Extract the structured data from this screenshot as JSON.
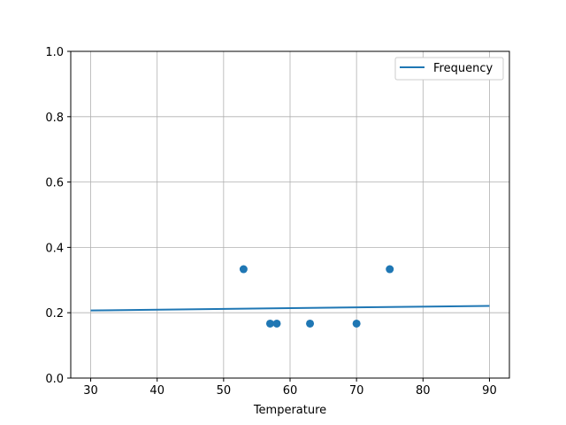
{
  "chart_data": {
    "type": "scatter",
    "title": "",
    "xlabel": "Temperature",
    "ylabel": "",
    "xlim": [
      27,
      93
    ],
    "ylim": [
      0,
      1
    ],
    "xticks": [
      30,
      40,
      50,
      60,
      70,
      80,
      90
    ],
    "yticks": [
      0.0,
      0.2,
      0.4,
      0.6,
      0.8,
      1.0
    ],
    "xtick_labels": [
      "30",
      "40",
      "50",
      "60",
      "70",
      "80",
      "90"
    ],
    "ytick_labels": [
      "0.0",
      "0.2",
      "0.4",
      "0.6",
      "0.8",
      "1.0"
    ],
    "grid": true,
    "legend_placement": "top-right",
    "color": "#1f77b4",
    "points": [
      {
        "x": 53,
        "y": 0.3333
      },
      {
        "x": 57,
        "y": 0.1667
      },
      {
        "x": 58,
        "y": 0.1667
      },
      {
        "x": 63,
        "y": 0.1667
      },
      {
        "x": 70,
        "y": 0.1667
      },
      {
        "x": 75,
        "y": 0.3333
      }
    ],
    "line": {
      "name": "Frequency",
      "x": [
        30,
        90
      ],
      "y": [
        0.207,
        0.221
      ]
    }
  }
}
